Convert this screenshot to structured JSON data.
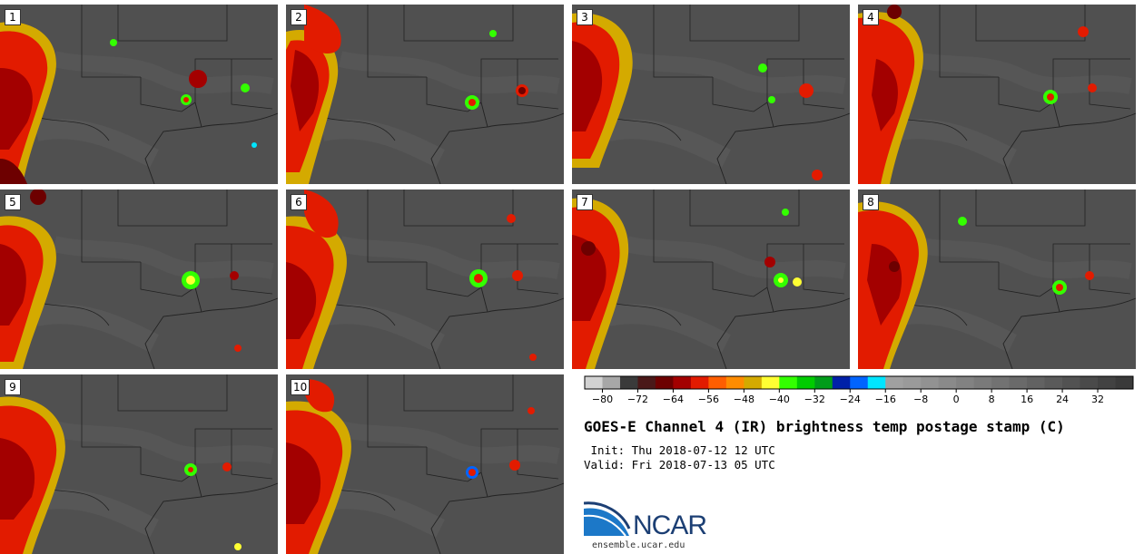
{
  "panels": [
    {
      "label": "1"
    },
    {
      "label": "2"
    },
    {
      "label": "3"
    },
    {
      "label": "4"
    },
    {
      "label": "5"
    },
    {
      "label": "6"
    },
    {
      "label": "7"
    },
    {
      "label": "8"
    },
    {
      "label": "9"
    },
    {
      "label": "10"
    }
  ],
  "colorbar": {
    "tick_labels": [
      "−80",
      "−72",
      "−64",
      "−56",
      "−48",
      "−40",
      "−32",
      "−24",
      "−16",
      "−8",
      "0",
      "8",
      "16",
      "24",
      "32"
    ],
    "tick_values": [
      -80,
      -72,
      -64,
      -56,
      -48,
      -40,
      -32,
      -24,
      -16,
      -8,
      0,
      8,
      16,
      24,
      32
    ],
    "range": [
      -84,
      40
    ],
    "step": 4,
    "colors": [
      "#d2d2d2",
      "#a7a7a7",
      "#3a3a3a",
      "#4a1818",
      "#6d0000",
      "#a30000",
      "#e21b00",
      "#ff5e00",
      "#ff8c00",
      "#d4aa00",
      "#ffff33",
      "#33ff00",
      "#00cc00",
      "#009c1a",
      "#0020a8",
      "#0064ff",
      "#00e5ff",
      "#a0a0a0",
      "#9a9a9a",
      "#929292",
      "#8a8a8a",
      "#828282",
      "#7a7a7a",
      "#727272",
      "#6a6a6a",
      "#626262",
      "#5a5a5a",
      "#525252",
      "#4a4a4a",
      "#424242",
      "#3a3a3a"
    ]
  },
  "title": "GOES-E Channel 4 (IR) brightness temp postage stamp (C)",
  "init": " Init: Thu 2018-07-12 12 UTC",
  "valid": "Valid: Fri 2018-07-13 05 UTC",
  "logo": {
    "text": "NCAR",
    "url": "ensemble.ucar.edu"
  }
}
